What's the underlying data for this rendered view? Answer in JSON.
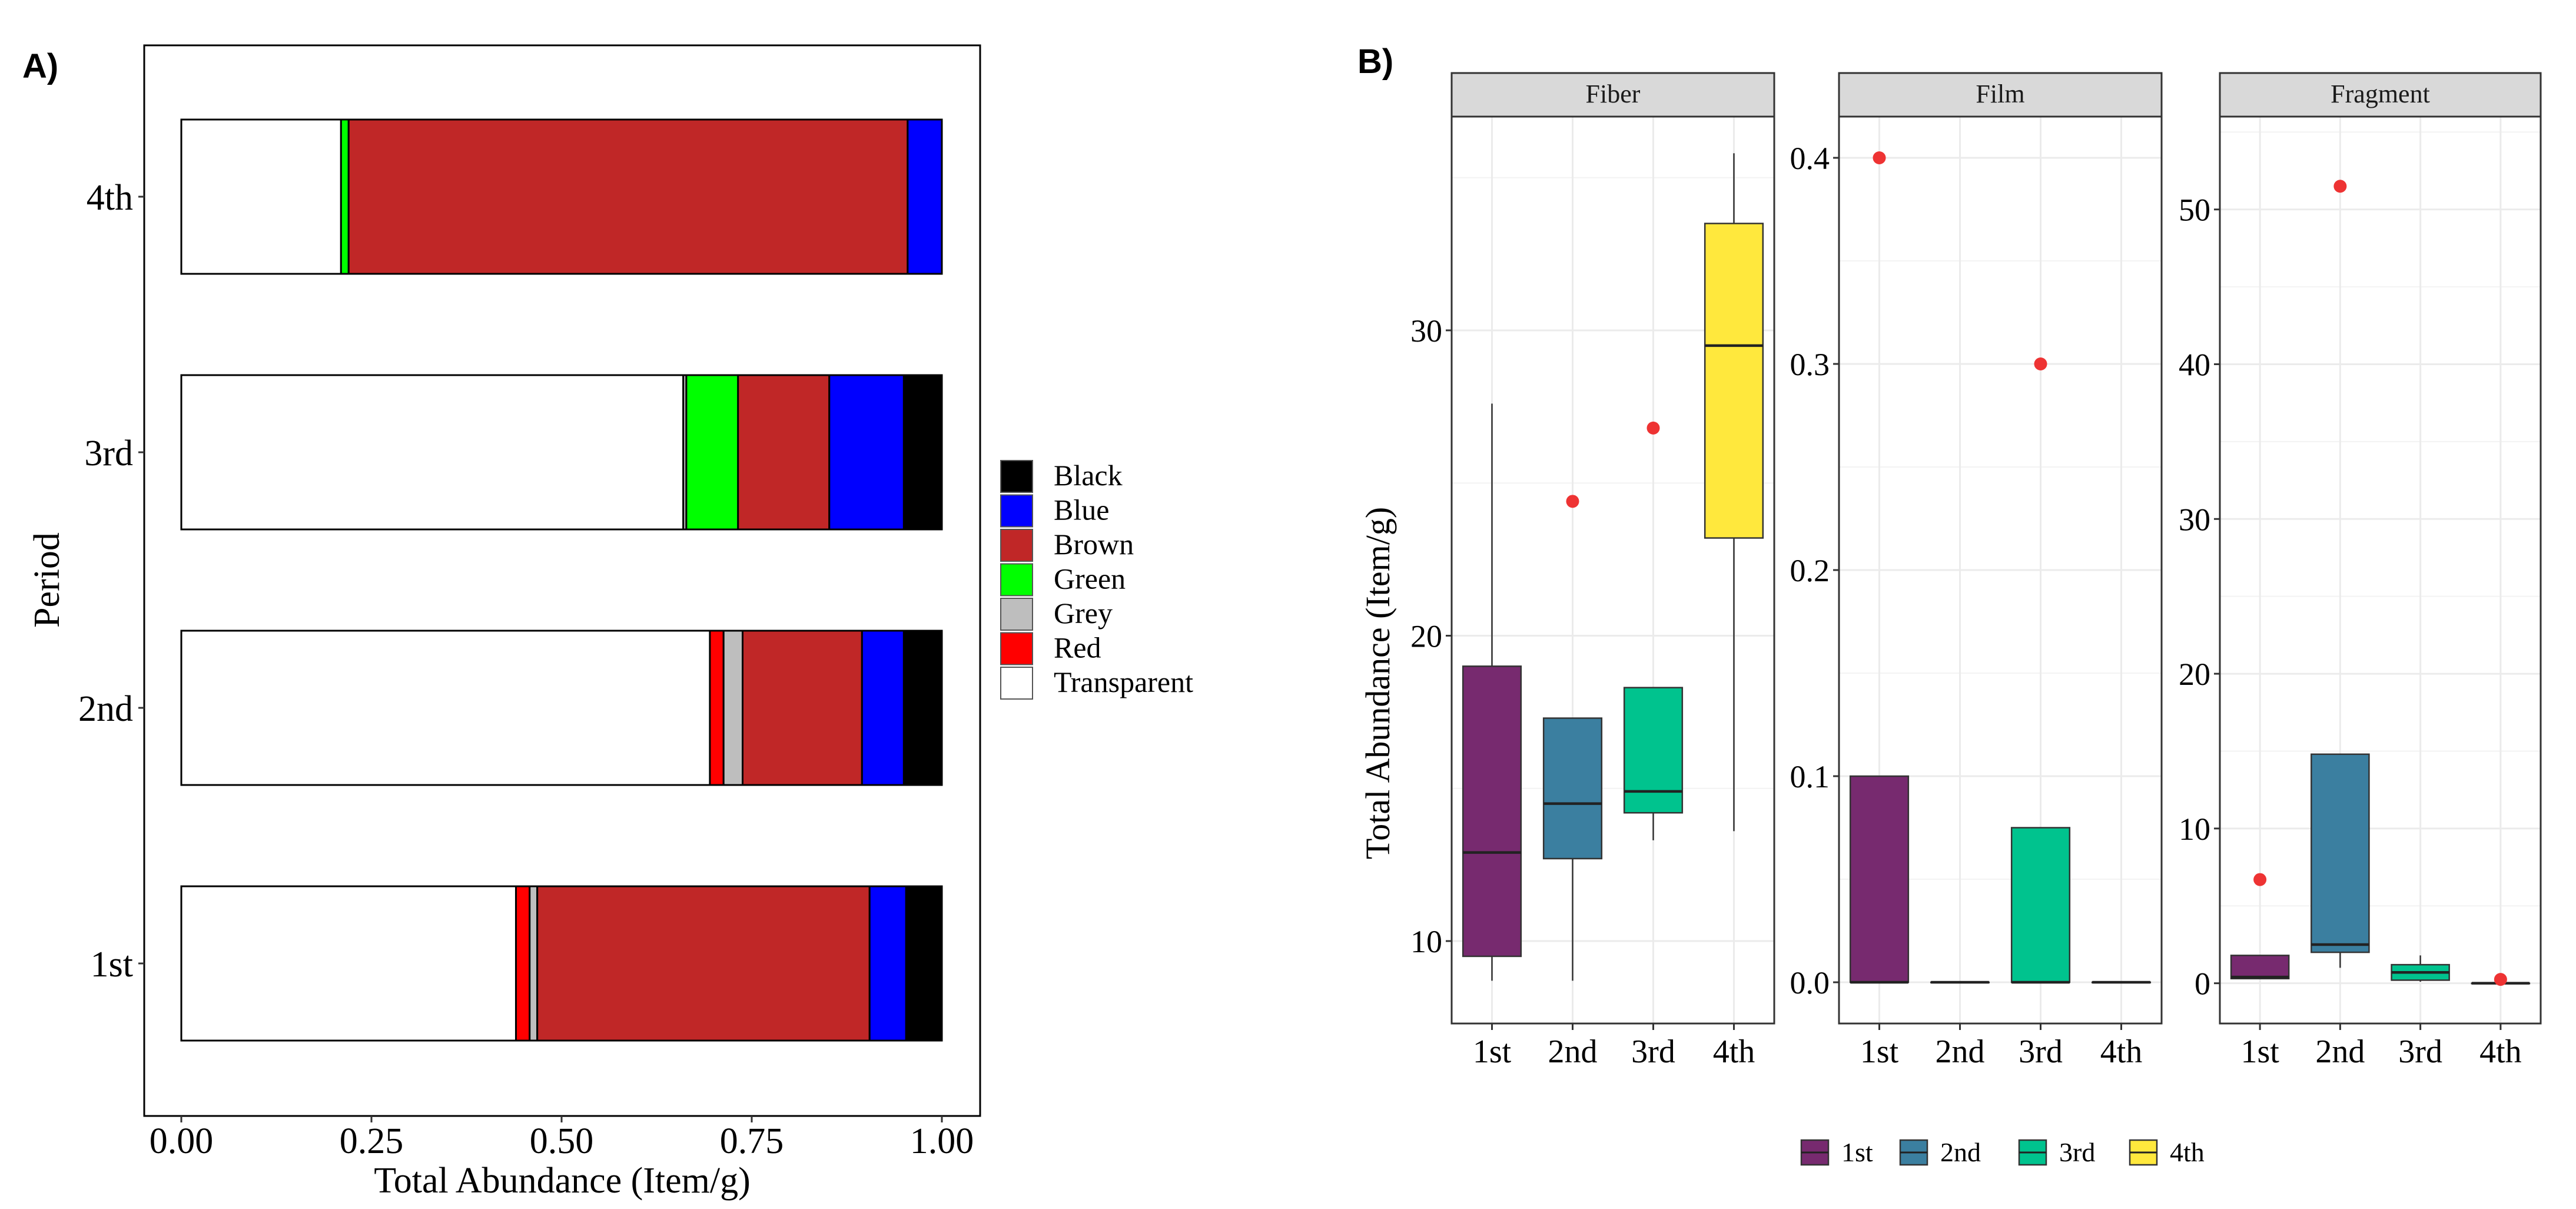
{
  "panel_a_label": "A)",
  "panel_b_label": "B)",
  "chart_data": [
    {
      "type": "bar",
      "orientation": "horizontal",
      "stacked": true,
      "normalized": true,
      "xlabel": "Total Abundance (Item/g)",
      "ylabel": "Period",
      "xlim": [
        0,
        1
      ],
      "xticks": [
        "0.00",
        "0.25",
        "0.50",
        "0.75",
        "1.00"
      ],
      "categories": [
        "1st",
        "2nd",
        "3rd",
        "4th"
      ],
      "series": [
        {
          "name": "Transparent",
          "color": "#ffffff",
          "values": [
            0.44,
            0.695,
            0.66,
            0.21
          ]
        },
        {
          "name": "Red",
          "color": "#ff0000",
          "values": [
            0.018,
            0.018,
            0.0,
            0.0
          ]
        },
        {
          "name": "Grey",
          "color": "#bebebe",
          "values": [
            0.01,
            0.025,
            0.004,
            0.0
          ]
        },
        {
          "name": "Green",
          "color": "#00ff00",
          "values": [
            0.0,
            0.0,
            0.068,
            0.01
          ]
        },
        {
          "name": "Brown",
          "color": "#c02727",
          "values": [
            0.437,
            0.157,
            0.12,
            0.735
          ]
        },
        {
          "name": "Blue",
          "color": "#0000ff",
          "values": [
            0.048,
            0.055,
            0.098,
            0.045
          ]
        },
        {
          "name": "Black",
          "color": "#000000",
          "values": [
            0.047,
            0.05,
            0.05,
            0.0
          ]
        }
      ],
      "legend": {
        "position": "right",
        "entries": [
          "Black",
          "Blue",
          "Brown",
          "Green",
          "Grey",
          "Red",
          "Transparent"
        ],
        "colors": [
          "#000000",
          "#0000ff",
          "#c02727",
          "#00ff00",
          "#bebebe",
          "#ff0000",
          "#ffffff"
        ]
      }
    },
    {
      "type": "box",
      "facets": [
        "Fiber",
        "Film",
        "Fragment"
      ],
      "ylabel": "Total Abundance (Item/g)",
      "categories": [
        "1st",
        "2nd",
        "3rd",
        "4th"
      ],
      "colors": [
        "#772a6f",
        "#3b7fa0",
        "#00c38e",
        "#ffe83d"
      ],
      "legend": {
        "position": "bottom",
        "entries": [
          "1st",
          "2nd",
          "3rd",
          "4th"
        ]
      },
      "panels": [
        {
          "facet": "Fiber",
          "ylim": [
            7.3,
            37.0
          ],
          "yticks": [
            10,
            20,
            30
          ],
          "boxes": [
            {
              "cat": "1st",
              "whisker_low": 8.7,
              "q1": 9.5,
              "median": 12.9,
              "q3": 19.0,
              "whisker_high": 27.6
            },
            {
              "cat": "2nd",
              "whisker_low": 8.7,
              "q1": 12.7,
              "median": 14.5,
              "q3": 17.3,
              "whisker_high": 17.3
            },
            {
              "cat": "3rd",
              "whisker_low": 13.3,
              "q1": 14.2,
              "median": 14.9,
              "q3": 18.3,
              "whisker_high": 18.3
            },
            {
              "cat": "4th",
              "whisker_low": 13.6,
              "q1": 23.2,
              "median": 29.5,
              "q3": 33.5,
              "whisker_high": 35.8
            }
          ],
          "outliers": [
            {
              "cat": "2nd",
              "y": 24.4
            },
            {
              "cat": "3rd",
              "y": 26.8
            }
          ]
        },
        {
          "facet": "Film",
          "ylim": [
            -0.02,
            0.42
          ],
          "yticks": [
            "0.0",
            "0.1",
            "0.2",
            "0.3",
            "0.4"
          ],
          "boxes": [
            {
              "cat": "1st",
              "whisker_low": 0.0,
              "q1": 0.0,
              "median": 0.0,
              "q3": 0.1,
              "whisker_high": 0.1
            },
            {
              "cat": "2nd",
              "whisker_low": 0.0,
              "q1": 0.0,
              "median": 0.0,
              "q3": 0.0,
              "whisker_high": 0.0
            },
            {
              "cat": "3rd",
              "whisker_low": 0.0,
              "q1": 0.0,
              "median": 0.0,
              "q3": 0.075,
              "whisker_high": 0.075
            },
            {
              "cat": "4th",
              "whisker_low": 0.0,
              "q1": 0.0,
              "median": 0.0,
              "q3": 0.0,
              "whisker_high": 0.0
            }
          ],
          "outliers": [
            {
              "cat": "1st",
              "y": 0.4
            },
            {
              "cat": "3rd",
              "y": 0.3
            }
          ]
        },
        {
          "facet": "Fragment",
          "ylim": [
            -2.6,
            56.0
          ],
          "yticks": [
            0,
            10,
            20,
            30,
            40,
            50
          ],
          "boxes": [
            {
              "cat": "1st",
              "whisker_low": 0.3,
              "q1": 0.3,
              "median": 0.4,
              "q3": 1.8,
              "whisker_high": 1.8
            },
            {
              "cat": "2nd",
              "whisker_low": 1.0,
              "q1": 2.0,
              "median": 2.5,
              "q3": 14.8,
              "whisker_high": 14.8
            },
            {
              "cat": "3rd",
              "whisker_low": 0.1,
              "q1": 0.2,
              "median": 0.7,
              "q3": 1.2,
              "whisker_high": 1.8
            },
            {
              "cat": "4th",
              "whisker_low": 0.0,
              "q1": 0.0,
              "median": 0.0,
              "q3": 0.0,
              "whisker_high": 0.0
            }
          ],
          "outliers": [
            {
              "cat": "1st",
              "y": 6.7
            },
            {
              "cat": "2nd",
              "y": 51.5
            },
            {
              "cat": "4th",
              "y": 0.25
            }
          ]
        }
      ]
    }
  ]
}
